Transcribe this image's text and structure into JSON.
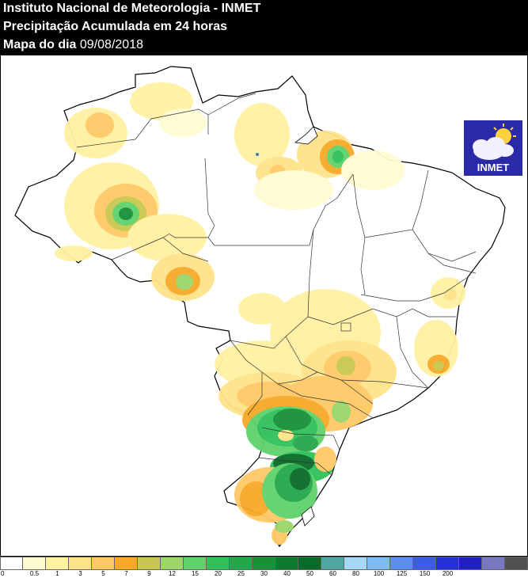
{
  "header": {
    "line1": "Instituto Nacional de Meteorologia - INMET",
    "line2": "Precipitação Acumulada em 24 horas",
    "line3_prefix": "Mapa do dia",
    "line3_date": "09/08/2018"
  },
  "logo": {
    "text": "INMET",
    "icon": "cloud-sun-icon"
  },
  "legend": {
    "colors": [
      "#ffffff",
      "#fffbd0",
      "#fff2a3",
      "#ffe38a",
      "#ffc966",
      "#f7a828",
      "#c8c84e",
      "#9ad66a",
      "#5fd26c",
      "#30c05a",
      "#22a84a",
      "#179038",
      "#0d7a2e",
      "#096b28",
      "#4fa6a0",
      "#a6d8f5",
      "#7fbcf2",
      "#5c8ef0",
      "#3c5ce8",
      "#2530d8",
      "#2020c0",
      "#7878c0",
      "#505050"
    ],
    "labels": [
      "0",
      "0.5",
      "1",
      "3",
      "5",
      "7",
      "9",
      "12",
      "15",
      "20",
      "25",
      "30",
      "40",
      "50",
      "60",
      "80",
      "100",
      "125",
      "150",
      "200"
    ]
  }
}
